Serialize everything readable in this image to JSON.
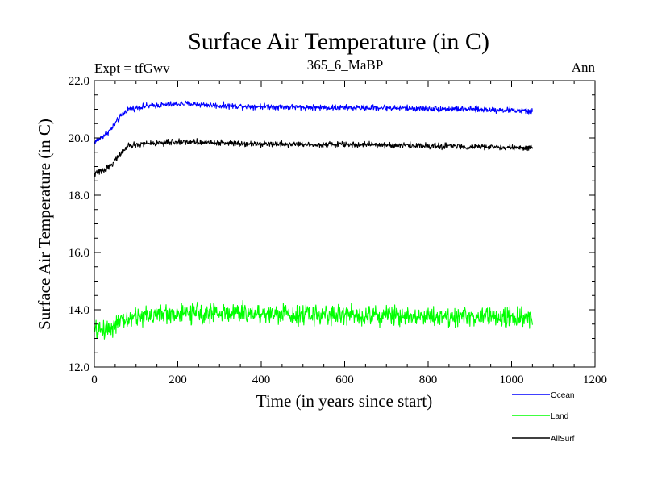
{
  "chart_data": {
    "type": "line",
    "title": "Surface Air Temperature (in C)",
    "expt_label": "Expt = tfGwv",
    "subtitle": "365_6_MaBP",
    "season": "Ann",
    "xlabel": "Time (in years since start)",
    "ylabel": "Surface Air Temperature (in C)",
    "xlim": [
      0,
      1200
    ],
    "ylim": [
      12.0,
      22.0
    ],
    "xticks": [
      0,
      200,
      400,
      600,
      800,
      1000,
      1200
    ],
    "xtick_labels": [
      "0",
      "200",
      "400",
      "600",
      "800",
      "1000",
      "1200"
    ],
    "yticks": [
      12.0,
      14.0,
      16.0,
      18.0,
      20.0,
      22.0
    ],
    "ytick_labels": [
      "12.0",
      "14.0",
      "16.0",
      "18.0",
      "20.0",
      "22.0"
    ],
    "legend_position": "bottom-right, below plot",
    "series": [
      {
        "name": "Ocean",
        "color": "#0000ff",
        "noise": 0.05,
        "points": [
          [
            0,
            19.85
          ],
          [
            20,
            20.05
          ],
          [
            40,
            20.3
          ],
          [
            60,
            20.7
          ],
          [
            80,
            21.0
          ],
          [
            120,
            21.1
          ],
          [
            160,
            21.15
          ],
          [
            220,
            21.2
          ],
          [
            300,
            21.12
          ],
          [
            400,
            21.1
          ],
          [
            500,
            21.07
          ],
          [
            600,
            21.05
          ],
          [
            700,
            21.05
          ],
          [
            800,
            21.02
          ],
          [
            900,
            21.0
          ],
          [
            1000,
            20.97
          ],
          [
            1050,
            20.92
          ]
        ]
      },
      {
        "name": "Land",
        "color": "#00ff00",
        "noise": 0.17,
        "points": [
          [
            0,
            13.25
          ],
          [
            30,
            13.35
          ],
          [
            60,
            13.55
          ],
          [
            100,
            13.75
          ],
          [
            150,
            13.85
          ],
          [
            200,
            13.85
          ],
          [
            300,
            13.9
          ],
          [
            400,
            13.87
          ],
          [
            500,
            13.83
          ],
          [
            600,
            13.82
          ],
          [
            700,
            13.82
          ],
          [
            800,
            13.78
          ],
          [
            900,
            13.75
          ],
          [
            1000,
            13.72
          ],
          [
            1050,
            13.65
          ]
        ]
      },
      {
        "name": "AllSurf",
        "color": "#000000",
        "noise": 0.05,
        "points": [
          [
            0,
            18.75
          ],
          [
            20,
            18.85
          ],
          [
            40,
            19.05
          ],
          [
            60,
            19.4
          ],
          [
            80,
            19.7
          ],
          [
            120,
            19.8
          ],
          [
            160,
            19.83
          ],
          [
            220,
            19.87
          ],
          [
            300,
            19.83
          ],
          [
            400,
            19.8
          ],
          [
            500,
            19.77
          ],
          [
            600,
            19.77
          ],
          [
            700,
            19.75
          ],
          [
            800,
            19.72
          ],
          [
            900,
            19.7
          ],
          [
            1000,
            19.66
          ],
          [
            1050,
            19.62
          ]
        ]
      }
    ]
  }
}
